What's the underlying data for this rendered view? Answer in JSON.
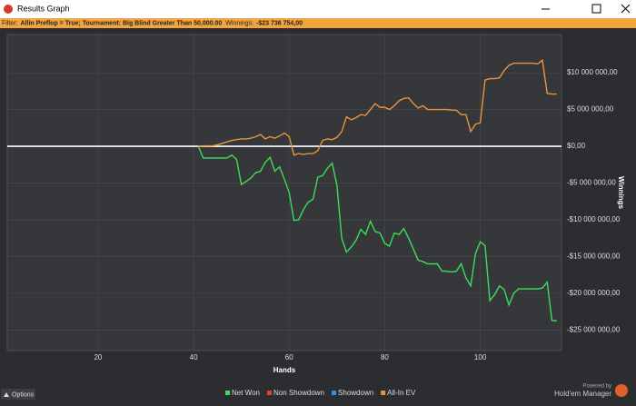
{
  "window": {
    "title": "Results Graph"
  },
  "filter": {
    "label": "Filter:",
    "criteria": "Allin Preflop = True; Tournament: Big Blind Greater Than 50,000.00",
    "winnings_label": "Winnings:",
    "winnings": "-$23 736 754,00"
  },
  "chart_data": {
    "type": "line",
    "x_label": "Hands",
    "y_label": "Winnings",
    "x": [
      41,
      42,
      43,
      44,
      45,
      46,
      47,
      48,
      49,
      50,
      51,
      52,
      53,
      54,
      55,
      56,
      57,
      58,
      59,
      60,
      61,
      62,
      63,
      64,
      65,
      66,
      67,
      68,
      69,
      70,
      71,
      72,
      73,
      74,
      75,
      76,
      77,
      78,
      79,
      80,
      81,
      82,
      83,
      84,
      85,
      86,
      87,
      88,
      89,
      90,
      91,
      92,
      93,
      94,
      95,
      96,
      97,
      98,
      99,
      100,
      101,
      102,
      103,
      104,
      105,
      106,
      107,
      108,
      109,
      110,
      111,
      112,
      113,
      114,
      115,
      116
    ],
    "series": [
      {
        "name": "Net Won",
        "color": "#3ddc5a",
        "values": [
          0,
          -1600000,
          -1600000,
          -1600000,
          -1600000,
          -1600000,
          -1600000,
          -1200000,
          -1800000,
          -5200000,
          -4800000,
          -4300000,
          -3600000,
          -3400000,
          -2200000,
          -1500000,
          -3400000,
          -2800000,
          -4500000,
          -6300000,
          -10100000,
          -10000000,
          -8600000,
          -7600000,
          -7200000,
          -4200000,
          -4000000,
          -3000000,
          -2300000,
          -5300000,
          -12500000,
          -14400000,
          -13700000,
          -12800000,
          -11300000,
          -12000000,
          -10200000,
          -11600000,
          -11800000,
          -13200000,
          -13600000,
          -11800000,
          -12000000,
          -11200000,
          -12500000,
          -14000000,
          -15500000,
          -15700000,
          -16000000,
          -16000000,
          -16000000,
          -17000000,
          -17000000,
          -17100000,
          -17000000,
          -16000000,
          -17900000,
          -19000000,
          -14600000,
          -13000000,
          -13500000,
          -21000000,
          -20200000,
          -19000000,
          -19500000,
          -21600000,
          -20000000,
          -19400000,
          -19400000,
          -19400000,
          -19400000,
          -19400000,
          -19300000,
          -18500000,
          -23700000,
          -23736754
        ]
      },
      {
        "name": "Non Showdown",
        "color": "#e0403a"
      },
      {
        "name": "Showdown",
        "color": "#3a8ee0"
      },
      {
        "name": "All-In EV",
        "color": "#e8953a",
        "values": [
          0,
          50000,
          50000,
          50000,
          200000,
          400000,
          600000,
          800000,
          900000,
          1000000,
          1000000,
          1100000,
          1300000,
          1600000,
          1000000,
          1300000,
          1100000,
          1400000,
          1800000,
          1300000,
          -1200000,
          -1000000,
          -1100000,
          -1000000,
          -1000000,
          -600000,
          800000,
          1000000,
          900000,
          1200000,
          2000000,
          4000000,
          3600000,
          3900000,
          4300000,
          4200000,
          5000000,
          5800000,
          5300000,
          5300000,
          5000000,
          5500000,
          6200000,
          6500000,
          6600000,
          5800000,
          5200000,
          5500000,
          5000000,
          5000000,
          5000000,
          5000000,
          5000000,
          4900000,
          4900000,
          4300000,
          4300000,
          2000000,
          3000000,
          3200000,
          9000000,
          9200000,
          9200000,
          9300000,
          10300000,
          11000000,
          11300000,
          11300000,
          11300000,
          11300000,
          11300000,
          11200000,
          11700000,
          7200000,
          7100000,
          7100000
        ]
      }
    ],
    "xlim": [
      1,
      117
    ],
    "xticks": [
      20,
      40,
      60,
      80,
      100
    ],
    "ylim": [
      -27800000,
      15200000
    ],
    "yticks": [
      {
        "value": 10000000,
        "label": "$10 000 000,00"
      },
      {
        "value": 5000000,
        "label": "$5 000 000,00"
      },
      {
        "value": 0,
        "label": "$0,00"
      },
      {
        "value": -5000000,
        "label": "-$5 000 000,00"
      },
      {
        "value": -10000000,
        "label": "-$10 000 000,00"
      },
      {
        "value": -15000000,
        "label": "-$15 000 000,00"
      },
      {
        "value": -20000000,
        "label": "-$20 000 000,00"
      },
      {
        "value": -25000000,
        "label": "-$25 000 000,00"
      }
    ],
    "grid": true,
    "legend": "bottom"
  },
  "footer": {
    "options": "Options",
    "powered_by": "Powered by",
    "brand": "Hold'em Manager"
  }
}
